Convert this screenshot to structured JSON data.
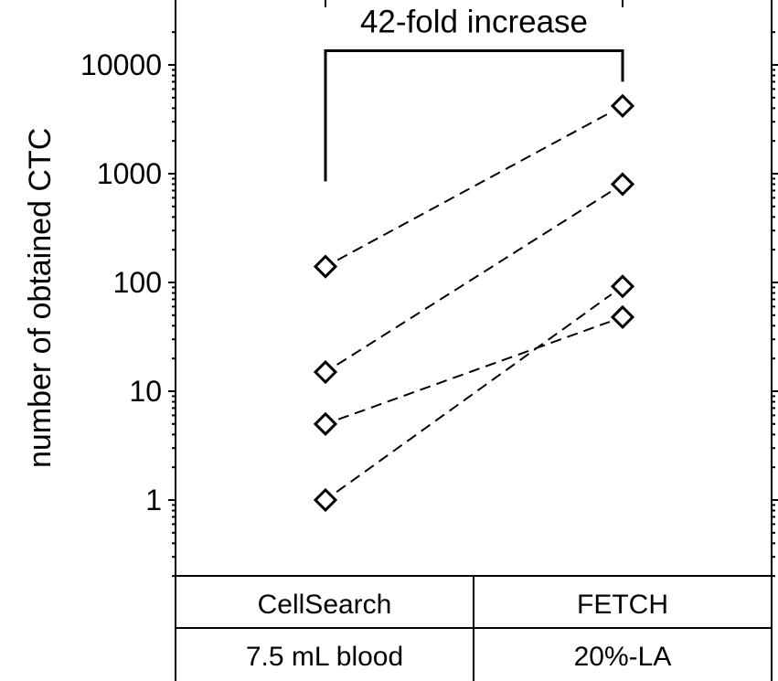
{
  "chart_data": {
    "type": "scatter",
    "title": "",
    "ylabel": "number of obtained CTC",
    "yscale": "log",
    "ylim": [
      0.2,
      26000
    ],
    "yticks": [
      1,
      10,
      100,
      1000,
      10000
    ],
    "ytick_labels": [
      "1",
      "10",
      "100",
      "1000",
      "10000"
    ],
    "categories": [
      "CellSearch",
      "FETCH"
    ],
    "category_sublabels": [
      "7.5 mL blood",
      "20%-LA"
    ],
    "series": [
      {
        "values": [
          140,
          4200
        ]
      },
      {
        "values": [
          15,
          800
        ]
      },
      {
        "values": [
          5,
          48
        ]
      },
      {
        "values": [
          1,
          92
        ]
      }
    ],
    "annotation": {
      "text": "42-fold increase",
      "from_category": 0,
      "to_category": 1,
      "left_arm_bottom": 850,
      "right_arm_bottom": 7000,
      "top": 13500
    },
    "marker": "diamond",
    "connector": "dashed",
    "grid": false,
    "colors": {
      "ink": "#000000",
      "background": "#ffffff"
    }
  }
}
